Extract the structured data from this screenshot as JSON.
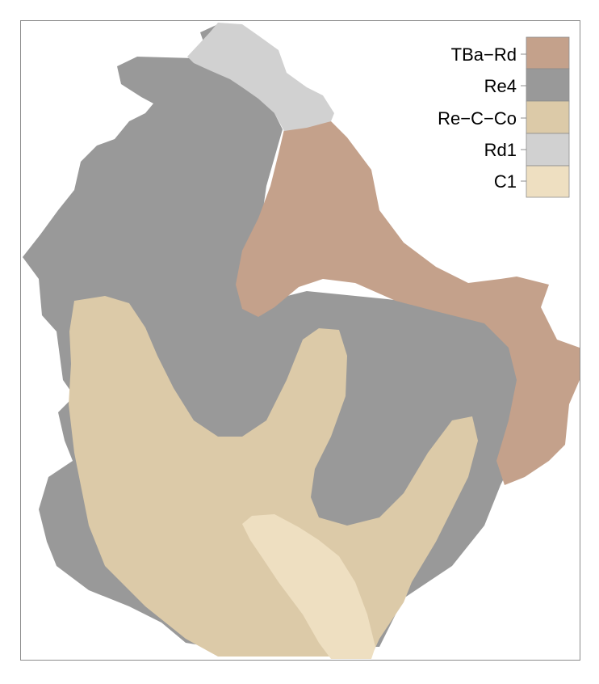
{
  "map": {
    "legend": [
      {
        "label": "TBa−Rd",
        "color": "#c4a18b"
      },
      {
        "label": "Re4",
        "color": "#999999"
      },
      {
        "label": "Re−C−Co",
        "color": "#dccaa8"
      },
      {
        "label": "Rd1",
        "color": "#d1d1d1"
      },
      {
        "label": "C1",
        "color": "#eedfc1"
      }
    ]
  }
}
